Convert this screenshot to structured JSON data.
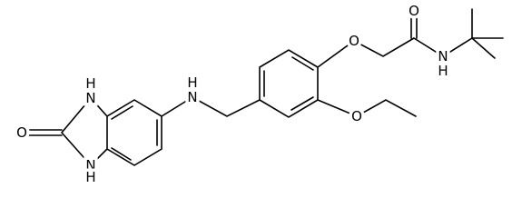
{
  "atoms": [
    {
      "label": "O"
    },
    {
      "label": "O"
    },
    {
      "label": "N"
    },
    {
      "label": "H"
    },
    {
      "label": "O"
    },
    {
      "label": "N"
    },
    {
      "label": "H"
    },
    {
      "label": "H"
    },
    {
      "label": "N"
    },
    {
      "label": "N"
    },
    {
      "label": "H"
    },
    {
      "label": "O"
    }
  ]
}
